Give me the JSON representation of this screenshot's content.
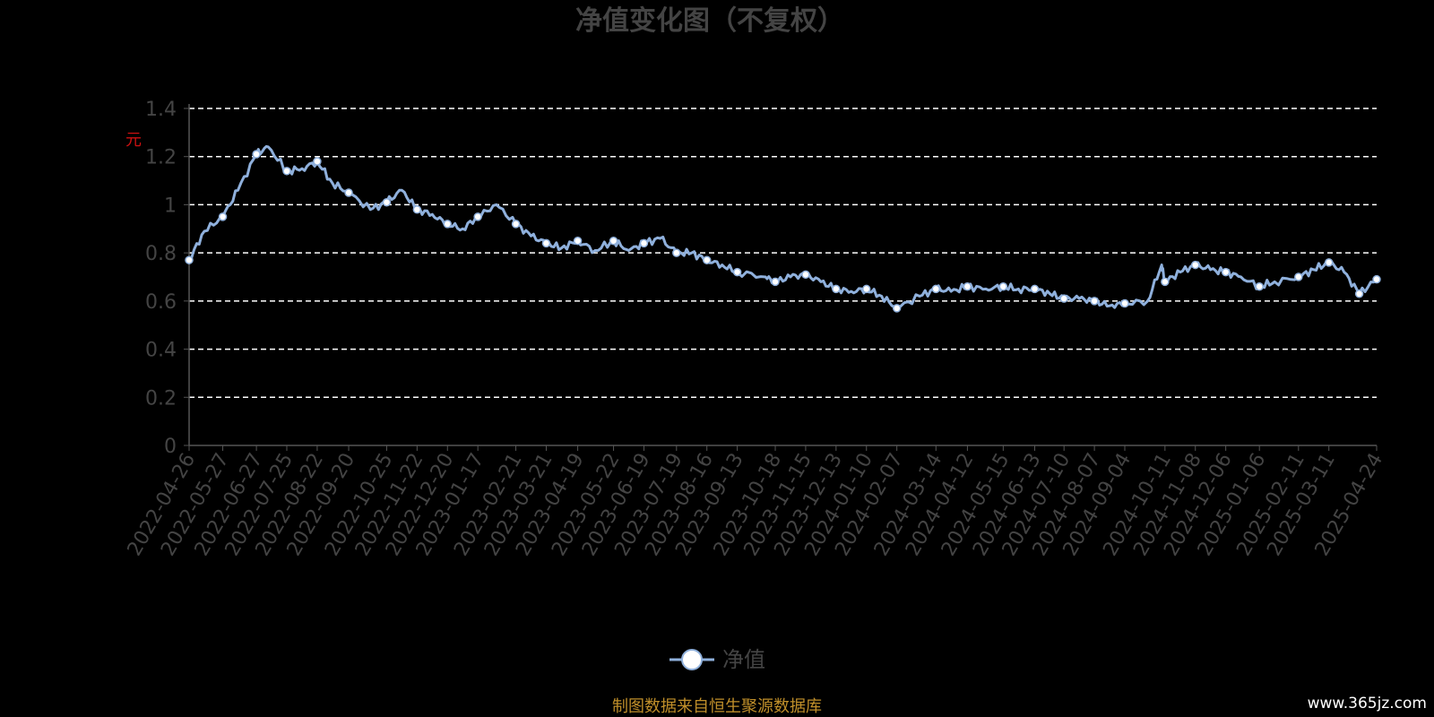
{
  "colors": {
    "background": "#000000",
    "title": "#444444",
    "axis_text": "#444444",
    "axis_line": "#555555",
    "grid": "#ffffff",
    "series_line": "#8fb0dc",
    "marker_fill": "#ffffff",
    "source": "#c08f2a",
    "watermark": "#ffffff",
    "unit": "#cc1111"
  },
  "y_unit": "元",
  "legend_label": "净值",
  "legend_icon": "circle-marker-icon",
  "source_note": "制图数据来自恒生聚源数据库",
  "watermark": "www.365jz.com",
  "chart_data": {
    "type": "line",
    "title": "净值变化图（不复权）",
    "xlabel": "",
    "ylabel": "元",
    "ylim": [
      0,
      1.4
    ],
    "yticks": [
      "0",
      "0.2",
      "0.4",
      "0.6",
      "0.8",
      "1",
      "1.2",
      "1.4"
    ],
    "grid": true,
    "legend_position": "bottom-center",
    "x_ticks": [
      "2022-04-26",
      "2022-05-27",
      "2022-06-27",
      "2022-07-25",
      "2022-08-22",
      "2022-09-20",
      "2022-10-25",
      "2022-11-22",
      "2022-12-20",
      "2023-01-17",
      "2023-02-21",
      "2023-03-21",
      "2023-04-19",
      "2023-05-22",
      "2023-06-19",
      "2023-07-19",
      "2023-08-16",
      "2023-09-13",
      "2023-10-18",
      "2023-11-15",
      "2023-12-13",
      "2024-01-10",
      "2024-02-07",
      "2024-03-14",
      "2024-04-12",
      "2024-05-15",
      "2024-06-13",
      "2024-07-10",
      "2024-08-07",
      "2024-09-04",
      "2024-10-11",
      "2024-11-08",
      "2024-12-06",
      "2025-01-06",
      "2025-02-11",
      "2025-03-11",
      "2025-04-24"
    ],
    "series": [
      {
        "name": "净值",
        "x": [
          "2022-04-26",
          "2022-05-10",
          "2022-05-27",
          "2022-06-10",
          "2022-06-27",
          "2022-07-08",
          "2022-07-25",
          "2022-08-08",
          "2022-08-22",
          "2022-09-05",
          "2022-09-20",
          "2022-10-10",
          "2022-10-25",
          "2022-11-08",
          "2022-11-22",
          "2022-12-06",
          "2022-12-20",
          "2023-01-03",
          "2023-01-17",
          "2023-02-03",
          "2023-02-21",
          "2023-03-07",
          "2023-03-21",
          "2023-04-04",
          "2023-04-19",
          "2023-05-05",
          "2023-05-22",
          "2023-06-05",
          "2023-06-19",
          "2023-07-04",
          "2023-07-19",
          "2023-08-02",
          "2023-08-16",
          "2023-08-30",
          "2023-09-13",
          "2023-10-09",
          "2023-10-18",
          "2023-11-01",
          "2023-11-15",
          "2023-11-29",
          "2023-12-13",
          "2023-12-27",
          "2024-01-10",
          "2024-01-24",
          "2024-02-07",
          "2024-02-28",
          "2024-03-14",
          "2024-03-28",
          "2024-04-12",
          "2024-04-29",
          "2024-05-15",
          "2024-05-29",
          "2024-06-13",
          "2024-06-27",
          "2024-07-10",
          "2024-07-24",
          "2024-08-07",
          "2024-08-21",
          "2024-09-04",
          "2024-09-25",
          "2024-10-08",
          "2024-10-11",
          "2024-10-25",
          "2024-11-08",
          "2024-11-22",
          "2024-12-06",
          "2024-12-20",
          "2025-01-06",
          "2025-01-20",
          "2025-02-11",
          "2025-02-25",
          "2025-03-11",
          "2025-03-25",
          "2025-04-08",
          "2025-04-24"
        ],
        "values": [
          0.77,
          0.89,
          0.95,
          1.06,
          1.21,
          1.24,
          1.14,
          1.15,
          1.18,
          1.09,
          1.05,
          0.98,
          1.01,
          1.06,
          0.98,
          0.96,
          0.92,
          0.9,
          0.95,
          1.0,
          0.92,
          0.87,
          0.84,
          0.82,
          0.85,
          0.81,
          0.85,
          0.81,
          0.84,
          0.86,
          0.8,
          0.8,
          0.77,
          0.75,
          0.72,
          0.7,
          0.68,
          0.7,
          0.71,
          0.68,
          0.65,
          0.64,
          0.65,
          0.62,
          0.57,
          0.62,
          0.65,
          0.64,
          0.66,
          0.65,
          0.66,
          0.65,
          0.65,
          0.63,
          0.61,
          0.61,
          0.6,
          0.58,
          0.59,
          0.6,
          0.75,
          0.68,
          0.72,
          0.75,
          0.73,
          0.72,
          0.7,
          0.66,
          0.68,
          0.7,
          0.73,
          0.76,
          0.72,
          0.63,
          0.69
        ]
      }
    ],
    "markers": [
      {
        "x": "2022-04-26",
        "y": 0.77
      },
      {
        "x": "2022-05-27",
        "y": 0.95
      },
      {
        "x": "2022-06-27",
        "y": 1.21
      },
      {
        "x": "2022-07-25",
        "y": 1.14
      },
      {
        "x": "2022-08-22",
        "y": 1.18
      },
      {
        "x": "2022-09-20",
        "y": 1.05
      },
      {
        "x": "2022-10-25",
        "y": 1.01
      },
      {
        "x": "2022-11-22",
        "y": 0.98
      },
      {
        "x": "2022-12-20",
        "y": 0.92
      },
      {
        "x": "2023-01-17",
        "y": 0.95
      },
      {
        "x": "2023-02-21",
        "y": 0.92
      },
      {
        "x": "2023-03-21",
        "y": 0.84
      },
      {
        "x": "2023-04-19",
        "y": 0.85
      },
      {
        "x": "2023-05-22",
        "y": 0.85
      },
      {
        "x": "2023-06-19",
        "y": 0.84
      },
      {
        "x": "2023-07-19",
        "y": 0.8
      },
      {
        "x": "2023-08-16",
        "y": 0.77
      },
      {
        "x": "2023-09-13",
        "y": 0.72
      },
      {
        "x": "2023-10-18",
        "y": 0.68
      },
      {
        "x": "2023-11-15",
        "y": 0.71
      },
      {
        "x": "2023-12-13",
        "y": 0.65
      },
      {
        "x": "2024-01-10",
        "y": 0.65
      },
      {
        "x": "2024-02-07",
        "y": 0.57
      },
      {
        "x": "2024-03-14",
        "y": 0.65
      },
      {
        "x": "2024-04-12",
        "y": 0.66
      },
      {
        "x": "2024-05-15",
        "y": 0.66
      },
      {
        "x": "2024-06-13",
        "y": 0.65
      },
      {
        "x": "2024-07-10",
        "y": 0.61
      },
      {
        "x": "2024-08-07",
        "y": 0.6
      },
      {
        "x": "2024-09-04",
        "y": 0.59
      },
      {
        "x": "2024-10-11",
        "y": 0.68
      },
      {
        "x": "2024-11-08",
        "y": 0.75
      },
      {
        "x": "2024-12-06",
        "y": 0.72
      },
      {
        "x": "2025-01-06",
        "y": 0.66
      },
      {
        "x": "2025-02-11",
        "y": 0.7
      },
      {
        "x": "2025-03-11",
        "y": 0.76
      },
      {
        "x": "2025-04-08",
        "y": 0.63
      },
      {
        "x": "2025-04-24",
        "y": 0.69
      }
    ]
  }
}
